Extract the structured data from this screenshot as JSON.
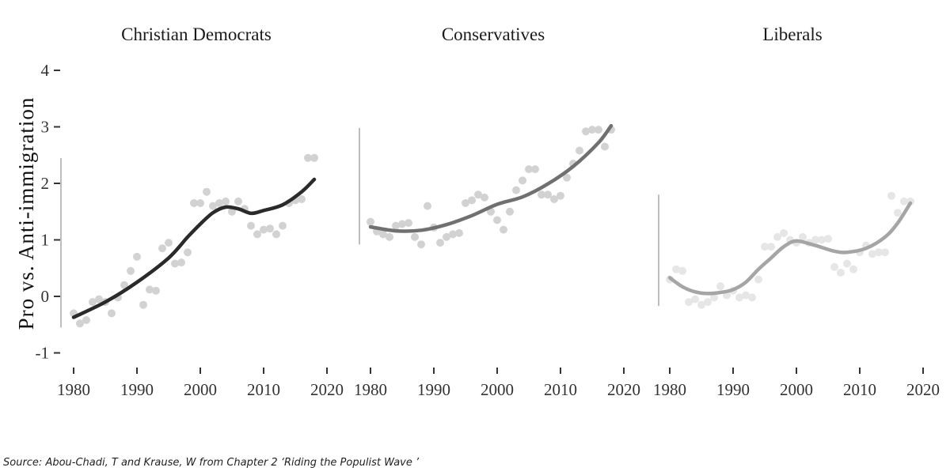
{
  "chart_data": {
    "type": "scatter",
    "ylabel": "Pro vs. Anti-immigration",
    "xlim": [
      1980,
      2020
    ],
    "ylim": [
      -1,
      4
    ],
    "xticks": [
      1980,
      1990,
      2000,
      2010,
      2020
    ],
    "yticks": [
      -1,
      0,
      1,
      2,
      3,
      4
    ],
    "grid": false,
    "source": "Source: Abou-Chadi, T and Krause, W  from  Chapter 2 ‘Riding the Populist Wave ’",
    "panels": [
      {
        "title": "Christian Democrats",
        "line_color": "#2a2a2a",
        "point_color": "#d2d2d2",
        "points": {
          "x": [
            1980,
            1981,
            1982,
            1983,
            1984,
            1985,
            1986,
            1987,
            1988,
            1989,
            1990,
            1991,
            1992,
            1993,
            1994,
            1995,
            1996,
            1997,
            1998,
            1999,
            2000,
            2001,
            2002,
            2003,
            2004,
            2005,
            2006,
            2007,
            2008,
            2009,
            2010,
            2011,
            2012,
            2013,
            2014,
            2015,
            2016,
            2017,
            2018
          ],
          "y": [
            -0.3,
            -0.48,
            -0.42,
            -0.1,
            -0.05,
            -0.1,
            -0.3,
            -0.02,
            0.2,
            0.45,
            0.7,
            -0.15,
            0.12,
            0.1,
            0.85,
            0.95,
            0.58,
            0.6,
            0.78,
            1.65,
            1.65,
            1.85,
            1.6,
            1.65,
            1.68,
            1.5,
            1.68,
            1.55,
            1.25,
            1.1,
            1.18,
            1.2,
            1.1,
            1.25,
            1.65,
            1.7,
            1.72,
            2.45,
            2.45
          ]
        },
        "trend": {
          "x": [
            1980,
            1985,
            1990,
            1995,
            1998,
            2000,
            2002,
            2004,
            2006,
            2008,
            2010,
            2013,
            2016,
            2018
          ],
          "y": [
            -0.37,
            -0.1,
            0.25,
            0.68,
            1.05,
            1.28,
            1.48,
            1.58,
            1.55,
            1.47,
            1.52,
            1.62,
            1.85,
            2.07
          ]
        }
      },
      {
        "title": "Conservatives",
        "line_color": "#707070",
        "point_color": "#d2d2d2",
        "points": {
          "x": [
            1980,
            1981,
            1982,
            1983,
            1984,
            1985,
            1986,
            1987,
            1988,
            1989,
            1990,
            1991,
            1992,
            1993,
            1994,
            1995,
            1996,
            1997,
            1998,
            1999,
            2000,
            2001,
            2002,
            2003,
            2004,
            2005,
            2006,
            2007,
            2008,
            2009,
            2010,
            2011,
            2012,
            2013,
            2014,
            2015,
            2016,
            2017,
            2018
          ],
          "y": [
            1.32,
            1.15,
            1.1,
            1.05,
            1.25,
            1.28,
            1.3,
            1.05,
            0.92,
            1.6,
            1.22,
            0.95,
            1.05,
            1.1,
            1.12,
            1.65,
            1.7,
            1.8,
            1.75,
            1.5,
            1.35,
            1.18,
            1.5,
            1.88,
            2.05,
            2.25,
            2.25,
            1.8,
            1.8,
            1.72,
            1.78,
            2.1,
            2.35,
            2.58,
            2.92,
            2.95,
            2.95,
            2.65,
            2.95
          ]
        },
        "trend": {
          "x": [
            1980,
            1984,
            1988,
            1992,
            1996,
            2000,
            2004,
            2008,
            2012,
            2016,
            2018
          ],
          "y": [
            1.23,
            1.16,
            1.17,
            1.27,
            1.43,
            1.63,
            1.76,
            1.99,
            2.3,
            2.72,
            3.02
          ]
        }
      },
      {
        "title": "Liberals",
        "line_color": "#a5a5a5",
        "point_color": "#e6e6e6",
        "points": {
          "x": [
            1980,
            1981,
            1982,
            1983,
            1984,
            1985,
            1986,
            1987,
            1988,
            1989,
            1990,
            1991,
            1992,
            1993,
            1994,
            1995,
            1996,
            1997,
            1998,
            1999,
            2000,
            2001,
            2002,
            2003,
            2004,
            2005,
            2006,
            2007,
            2008,
            2009,
            2010,
            2011,
            2012,
            2013,
            2014,
            2015,
            2016,
            2017,
            2018
          ],
          "y": [
            0.3,
            0.48,
            0.45,
            -0.1,
            -0.05,
            -0.15,
            -0.1,
            -0.02,
            0.18,
            0.02,
            0.1,
            -0.02,
            0.02,
            -0.02,
            0.3,
            0.88,
            0.88,
            1.05,
            1.12,
            1.0,
            0.95,
            1.05,
            0.95,
            1.0,
            1.0,
            1.02,
            0.52,
            0.42,
            0.58,
            0.48,
            0.78,
            0.9,
            0.75,
            0.78,
            0.78,
            1.78,
            1.48,
            1.68,
            1.68
          ]
        },
        "trend": {
          "x": [
            1980,
            1982,
            1984,
            1986,
            1988,
            1990,
            1992,
            1994,
            1996,
            1998,
            2000,
            2003,
            2006,
            2008,
            2011,
            2014,
            2016,
            2018
          ],
          "y": [
            0.33,
            0.17,
            0.08,
            0.05,
            0.07,
            0.12,
            0.25,
            0.48,
            0.68,
            0.88,
            0.98,
            0.9,
            0.8,
            0.78,
            0.85,
            1.05,
            1.3,
            1.65
          ]
        }
      }
    ]
  }
}
